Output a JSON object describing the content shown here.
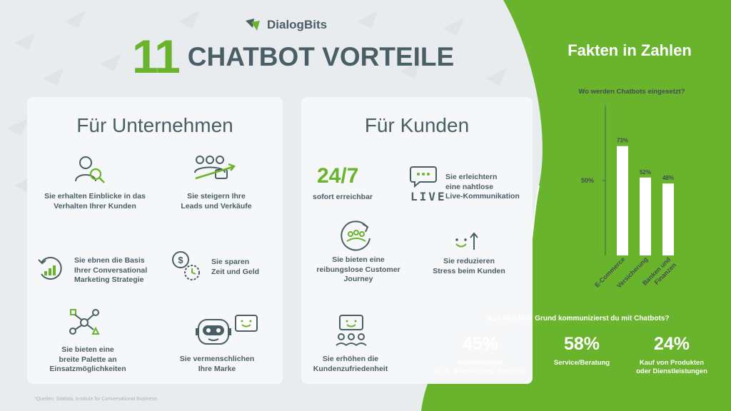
{
  "header": {
    "brand": "DialogBits",
    "title_number": "11",
    "title_text": "CHATBOT VORTEILE"
  },
  "company": {
    "title": "Für Unternehmen",
    "items": [
      {
        "icon": "user-search-icon",
        "text": "Sie erhalten Einblicke in das\nVerhalten Ihrer Kunden"
      },
      {
        "icon": "people-growth-icon",
        "text": "Sie steigern Ihre\nLeads und Verkäufe"
      },
      {
        "icon": "chart-cycle-icon",
        "text": "Sie ebnen die Basis\nIhrer Conversational\nMarketing Strategie"
      },
      {
        "icon": "money-clock-icon",
        "text": "Sie sparen\nZeit und Geld"
      },
      {
        "icon": "network-icon",
        "text": "Sie bieten eine\nbreite Palette an\nEinsatzmöglichkeiten"
      },
      {
        "icon": "robot-icon",
        "text": "Sie vermenschlichen\nIhre Marke"
      }
    ]
  },
  "customer": {
    "title": "Für Kunden",
    "big": "24/7",
    "items": [
      {
        "icon": "clock-text",
        "text": "sofort erreichbar"
      },
      {
        "icon": "live-chat-icon",
        "text": "Sie erleichtern\neine nahtlose\nLive-Kommunikation",
        "live": "LIVE"
      },
      {
        "icon": "journey-icon",
        "text": "Sie bieten eine\nreibungslose Customer\nJourney"
      },
      {
        "icon": "smile-arrow-icon",
        "text": "Sie reduzieren\nStress beim Kunden"
      },
      {
        "icon": "satisfaction-icon",
        "text": "Sie erhöhen die\nKundenzufriedenheit"
      }
    ]
  },
  "facts": {
    "title": "Fakten in Zahlen",
    "chart_question": "Wo werden Chatbots eingesetzt?",
    "bottom_question": "Aus welchem Grund kommunizierst du mit Chatbots?",
    "stats": [
      {
        "pct": "45%",
        "label": "Informationen\n(z. B. Sendestatus, Produkt)"
      },
      {
        "pct": "58%",
        "label": "Service/Beratung"
      },
      {
        "pct": "24%",
        "label": "Kauf von Produkten\noder Dienstleistungen"
      }
    ]
  },
  "chart_data": {
    "type": "bar",
    "title": "Wo werden Chatbots eingesetzt?",
    "categories": [
      "E-Commerce",
      "Versicherung",
      "Banken und\nFinanzen"
    ],
    "values": [
      73,
      52,
      48
    ],
    "value_labels": [
      "73%",
      "52%",
      "48%"
    ],
    "ytick_label": "50%",
    "ytick_value": 50,
    "ylim": [
      0,
      100
    ],
    "bar_color": "#ffffff"
  },
  "footnote": "*Quellen: Statista, Institute for Conversational Business",
  "colors": {
    "green": "#6ab42d",
    "dark": "#4a5e66",
    "background": "#e9ecef",
    "card": "#f6f7f8"
  }
}
